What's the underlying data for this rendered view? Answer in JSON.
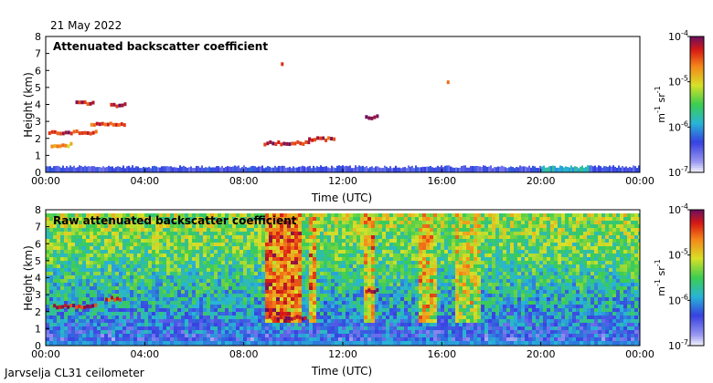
{
  "figure": {
    "date": "21 May 2022",
    "site": "Jarvselja CL31 ceilometer"
  },
  "chart_data": [
    {
      "type": "heatmap",
      "title": "Attenuated backscatter coefficient",
      "xlabel": "Time (UTC)",
      "ylabel": "Height (km)",
      "xlim": [
        0,
        24
      ],
      "ylim": [
        0,
        8
      ],
      "x_ticks": [
        "00:00",
        "04:00",
        "08:00",
        "12:00",
        "16:00",
        "20:00",
        "00:00"
      ],
      "y_ticks": [
        "0",
        "1",
        "2",
        "3",
        "4",
        "5",
        "6",
        "7",
        "8"
      ],
      "colorbar": {
        "label_base": "m",
        "label_exp1": "-1",
        "label_mid": " sr",
        "label_exp2": "-1",
        "ticks": [
          {
            "base": "10",
            "exp": "-4",
            "value": -4
          },
          {
            "base": "10",
            "exp": "-5",
            "value": -5
          },
          {
            "base": "10",
            "exp": "-6",
            "value": -6
          },
          {
            "base": "10",
            "exp": "-7",
            "value": -7
          }
        ],
        "range_log10": [
          -7,
          -4
        ]
      },
      "features": [
        {
          "kind": "surface-layer",
          "t_start": 0,
          "t_end": 24,
          "h_top": 0.35,
          "log10": -6.4
        },
        {
          "kind": "cloud-layer",
          "t_start": 0.1,
          "t_end": 2.0,
          "h": 2.35,
          "log10": -4.3
        },
        {
          "kind": "cloud-layer",
          "t_start": 0.2,
          "t_end": 1.0,
          "h": 1.6,
          "log10": -4.8
        },
        {
          "kind": "cloud-layer",
          "t_start": 1.8,
          "t_end": 3.2,
          "h": 2.8,
          "log10": -4.4
        },
        {
          "kind": "cloud-layer",
          "t_start": 2.6,
          "t_end": 3.2,
          "h": 3.95,
          "log10": -4.2
        },
        {
          "kind": "cloud-layer",
          "t_start": 1.2,
          "t_end": 1.9,
          "h": 4.05,
          "log10": -4.3
        },
        {
          "kind": "cloud-layer",
          "t_start": 8.8,
          "t_end": 10.6,
          "h": 1.7,
          "log10": -4.2
        },
        {
          "kind": "cloud-layer",
          "t_start": 10.6,
          "t_end": 11.6,
          "h": 1.95,
          "log10": -4.3
        },
        {
          "kind": "cloud-layer",
          "t_start": 12.9,
          "t_end": 13.4,
          "h": 3.25,
          "log10": -4.0
        },
        {
          "kind": "speck",
          "t_start": 16.2,
          "t_end": 16.3,
          "h": 5.3,
          "log10": -4.3
        },
        {
          "kind": "speck",
          "t_start": 9.5,
          "t_end": 9.6,
          "h": 6.4,
          "log10": -4.6
        }
      ]
    },
    {
      "type": "heatmap",
      "title": "Raw attenuated backscatter coefficient",
      "xlabel": "Time (UTC)",
      "ylabel": "Height (km)",
      "xlim": [
        0,
        24
      ],
      "ylim": [
        0,
        8
      ],
      "x_ticks": [
        "00:00",
        "04:00",
        "08:00",
        "12:00",
        "16:00",
        "20:00",
        "00:00"
      ],
      "y_ticks": [
        "0",
        "1",
        "2",
        "3",
        "4",
        "5",
        "6",
        "7",
        "8"
      ],
      "colorbar": {
        "label_base": "m",
        "label_exp1": "-1",
        "label_mid": " sr",
        "label_exp2": "-1",
        "ticks": [
          {
            "base": "10",
            "exp": "-4",
            "value": -4
          },
          {
            "base": "10",
            "exp": "-5",
            "value": -5
          },
          {
            "base": "10",
            "exp": "-6",
            "value": -6
          },
          {
            "base": "10",
            "exp": "-7",
            "value": -7
          }
        ],
        "range_log10": [
          -7,
          -4
        ]
      },
      "noise_gradient": {
        "h_low": 0,
        "h_high": 8,
        "log10_low": -6.6,
        "log10_high": -5.2
      },
      "bands": [
        {
          "t_start": 8.8,
          "t_end": 10.3,
          "log10": -4.4
        },
        {
          "t_start": 10.6,
          "t_end": 10.9,
          "log10": -4.6
        },
        {
          "t_start": 12.8,
          "t_end": 13.3,
          "log10": -4.7
        },
        {
          "t_start": 15.0,
          "t_end": 15.8,
          "log10": -4.8
        },
        {
          "t_start": 16.6,
          "t_end": 17.6,
          "log10": -4.9
        }
      ],
      "features": [
        {
          "kind": "cloud-layer",
          "t_start": 0.3,
          "t_end": 2.0,
          "h": 2.3,
          "log10": -4.2
        },
        {
          "kind": "cloud-layer",
          "t_start": 2.4,
          "t_end": 3.0,
          "h": 2.75,
          "log10": -4.4
        },
        {
          "kind": "cloud-layer",
          "t_start": 9.0,
          "t_end": 10.5,
          "h": 1.65,
          "log10": -4.2
        },
        {
          "kind": "cloud-layer",
          "t_start": 12.9,
          "t_end": 13.4,
          "h": 3.2,
          "log10": -4.0
        }
      ]
    }
  ]
}
